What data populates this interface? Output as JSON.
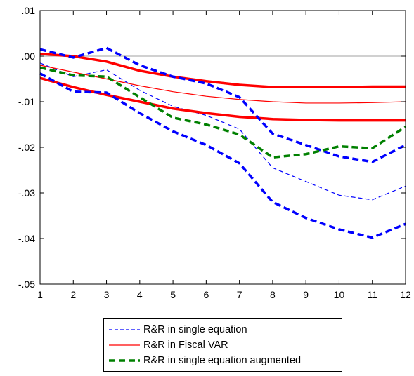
{
  "chart_data": {
    "type": "line",
    "x": [
      1,
      2,
      3,
      4,
      5,
      6,
      7,
      8,
      9,
      10,
      11,
      12
    ],
    "xlim": [
      1,
      12
    ],
    "ylim": [
      -0.05,
      0.01
    ],
    "x_ticks": [
      "1",
      "2",
      "3",
      "4",
      "5",
      "6",
      "7",
      "8",
      "9",
      "10",
      "11",
      "12"
    ],
    "y_ticks": [
      {
        "value": 0.01,
        "label": ".01"
      },
      {
        "value": 0.0,
        "label": ".00"
      },
      {
        "value": -0.01,
        "label": "-.01"
      },
      {
        "value": -0.02,
        "label": "-.02"
      },
      {
        "value": -0.03,
        "label": "-.03"
      },
      {
        "value": -0.04,
        "label": "-.04"
      },
      {
        "value": -0.05,
        "label": "-.05"
      }
    ],
    "reference_line": 0,
    "grid": false,
    "legend_position": "bottom",
    "series": [
      {
        "name": "R&R in single equation",
        "color": "#0000ff",
        "style": "dashed-thin",
        "values": [
          -0.0015,
          -0.0045,
          -0.003,
          -0.0075,
          -0.011,
          -0.013,
          -0.016,
          -0.0245,
          -0.0275,
          -0.0305,
          -0.0315,
          -0.0285
        ]
      },
      {
        "color": "#0000ff",
        "style": "dashed-thick",
        "band": "upper",
        "values": [
          0.0015,
          -0.0003,
          0.0018,
          -0.002,
          -0.0045,
          -0.006,
          -0.009,
          -0.017,
          -0.0195,
          -0.022,
          -0.0232,
          -0.0195
        ]
      },
      {
        "color": "#0000ff",
        "style": "dashed-thick",
        "band": "lower",
        "values": [
          -0.0038,
          -0.0078,
          -0.008,
          -0.0125,
          -0.0165,
          -0.0195,
          -0.0235,
          -0.032,
          -0.0355,
          -0.038,
          -0.0398,
          -0.0368
        ]
      },
      {
        "name": "R&R in Fiscal VAR",
        "color": "#ff0000",
        "style": "solid-thin",
        "values": [
          -0.002,
          -0.0035,
          -0.005,
          -0.0065,
          -0.0078,
          -0.0088,
          -0.0095,
          -0.01,
          -0.0103,
          -0.0103,
          -0.0102,
          -0.01
        ]
      },
      {
        "color": "#ff0000",
        "style": "solid-thick",
        "band": "upper",
        "values": [
          0.0005,
          0.0,
          -0.0012,
          -0.0032,
          -0.0045,
          -0.0055,
          -0.0063,
          -0.0068,
          -0.0068,
          -0.0068,
          -0.0067,
          -0.0067
        ]
      },
      {
        "color": "#ff0000",
        "style": "solid-thick",
        "band": "lower",
        "values": [
          -0.0048,
          -0.0068,
          -0.0085,
          -0.01,
          -0.0115,
          -0.0125,
          -0.0133,
          -0.0138,
          -0.014,
          -0.0141,
          -0.0141,
          -0.0141
        ]
      },
      {
        "name": "R&R in single equation augmented",
        "color": "#008000",
        "style": "dashed-thick",
        "values": [
          -0.0025,
          -0.0042,
          -0.0045,
          -0.009,
          -0.0135,
          -0.015,
          -0.0172,
          -0.0222,
          -0.0215,
          -0.0198,
          -0.0202,
          -0.0155
        ]
      }
    ]
  },
  "legend": {
    "items": [
      {
        "label": "R&R in single equation",
        "color": "#0000ff",
        "style": "dashed-thin"
      },
      {
        "label": "R&R in Fiscal VAR",
        "color": "#ff0000",
        "style": "solid-thin"
      },
      {
        "label": "R&R in single equation augmented",
        "color": "#008000",
        "style": "dashed-thick"
      }
    ]
  }
}
